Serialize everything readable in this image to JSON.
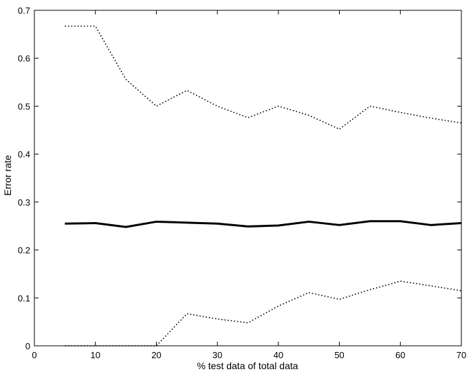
{
  "chart_data": {
    "type": "line",
    "title": "",
    "xlabel": "% test data of total data",
    "ylabel": "Error rate",
    "xlim": [
      0,
      70
    ],
    "ylim": [
      0,
      0.7
    ],
    "xticks": [
      0,
      10,
      20,
      30,
      40,
      50,
      60,
      70
    ],
    "yticks": [
      0,
      0.1,
      0.2,
      0.3,
      0.4,
      0.5,
      0.6,
      0.7
    ],
    "xtick_labels": [
      "0",
      "10",
      "20",
      "30",
      "40",
      "50",
      "60",
      "70"
    ],
    "ytick_labels": [
      "0",
      "0.1",
      "0.2",
      "0.3",
      "0.4",
      "0.5",
      "0.6",
      "0.7"
    ],
    "grid": false,
    "legend": "none",
    "x": [
      5,
      10,
      15,
      20,
      25,
      30,
      35,
      40,
      45,
      50,
      55,
      60,
      65,
      70
    ],
    "series": [
      {
        "style": "dotted",
        "color": "#000000",
        "values": [
          0.667,
          0.667,
          0.556,
          0.5,
          0.533,
          0.5,
          0.476,
          0.5,
          0.481,
          0.452,
          0.5,
          0.487,
          0.475,
          0.465
        ]
      },
      {
        "style": "solid-thick",
        "color": "#000000",
        "values": [
          0.255,
          0.256,
          0.248,
          0.259,
          0.257,
          0.255,
          0.249,
          0.251,
          0.259,
          0.252,
          0.26,
          0.26,
          0.252,
          0.256
        ]
      },
      {
        "style": "dotted",
        "color": "#000000",
        "values": [
          0.0,
          0.0,
          0.0,
          0.0,
          0.067,
          0.056,
          0.048,
          0.083,
          0.111,
          0.097,
          0.117,
          0.135,
          0.125,
          0.115
        ]
      }
    ]
  }
}
